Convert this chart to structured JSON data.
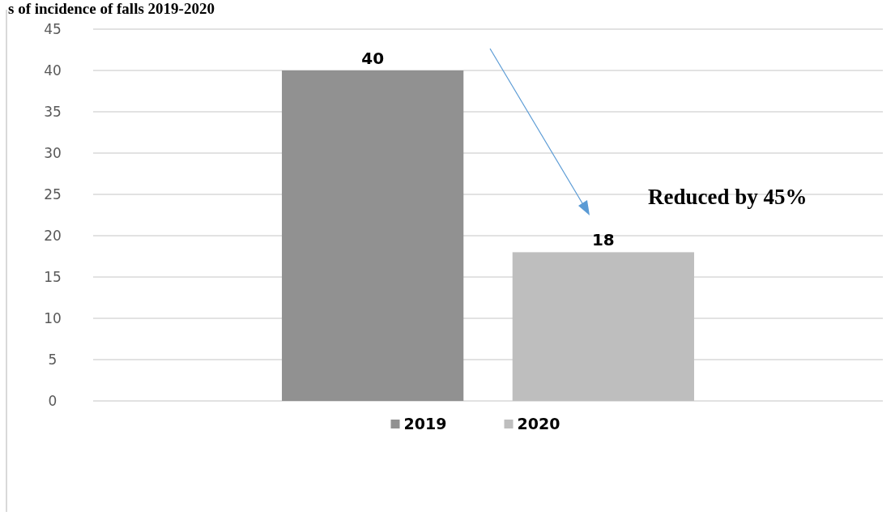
{
  "chart_data": {
    "type": "bar",
    "title": "s of incidence of falls 2019-2020",
    "categories": [
      null
    ],
    "series": [
      {
        "name": "2019",
        "color": "#919191",
        "values": [
          40
        ]
      },
      {
        "name": "2020",
        "color": "#bebebe",
        "values": [
          18
        ]
      }
    ],
    "ylim": [
      0,
      45
    ],
    "yticks": [
      0,
      5,
      10,
      15,
      20,
      25,
      30,
      35,
      40,
      45
    ],
    "grid": "y",
    "legend": "bottom",
    "data_labels": true,
    "annotations": [
      "Reduced by 45%"
    ]
  }
}
